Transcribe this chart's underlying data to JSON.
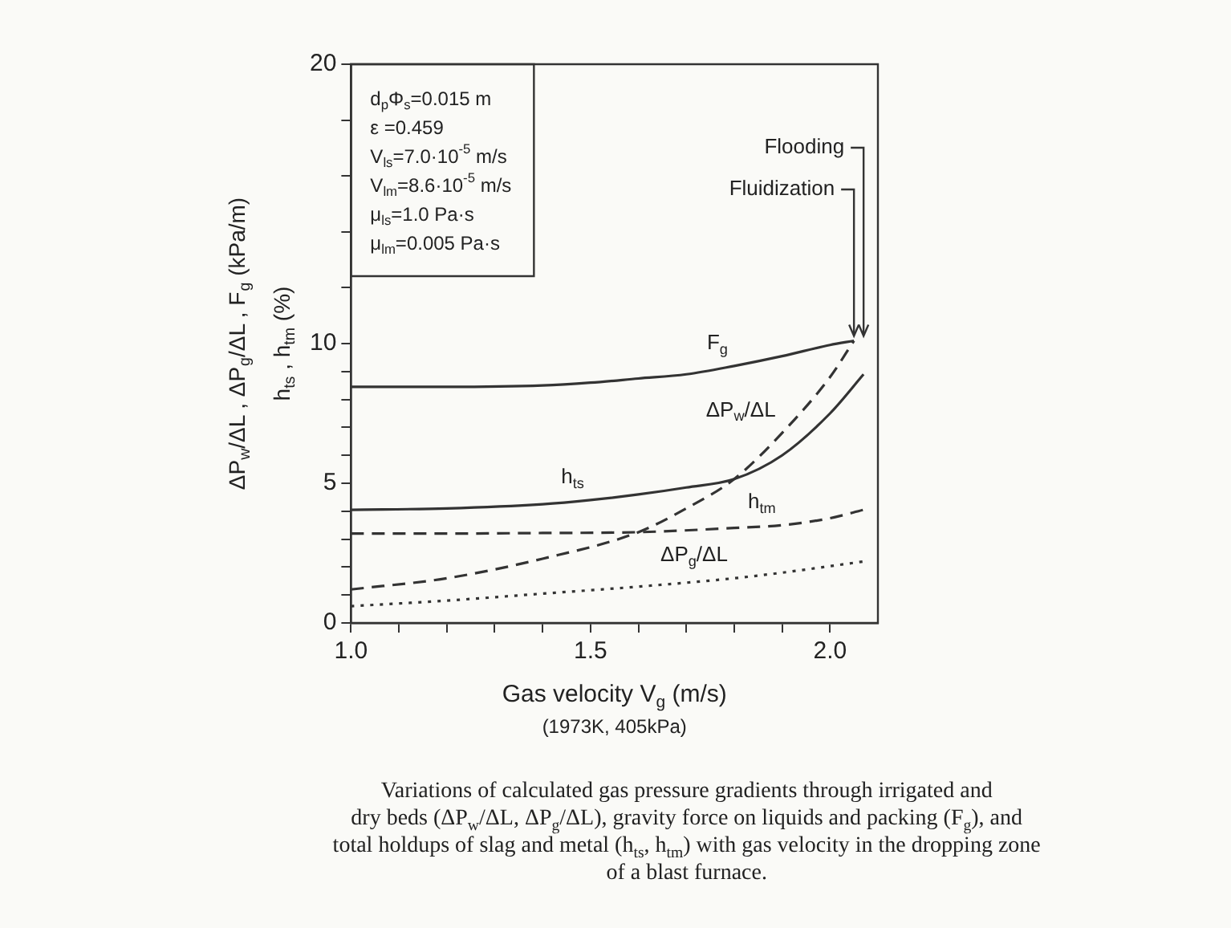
{
  "chart_data": {
    "type": "line",
    "xlabel": "Gas velocity V$_{g}$ (m/s)\n(1973K, 405kPa)",
    "ylabel": "ΔP$_{w}$/ΔL , ΔP$_{g}$/ΔL , F$_{g}$ (kPa/m)\nh$_{ts}$ , h$_{tm}$ (%)",
    "xlim": [
      1.0,
      2.1
    ],
    "xticks": [
      {
        "value": 1.0,
        "label": "1.0"
      },
      {
        "value": 1.1,
        "label": null
      },
      {
        "value": 1.2,
        "label": null
      },
      {
        "value": 1.3,
        "label": null
      },
      {
        "value": 1.4,
        "label": null
      },
      {
        "value": 1.5,
        "label": "1.5"
      },
      {
        "value": 1.6,
        "label": null
      },
      {
        "value": 1.7,
        "label": null
      },
      {
        "value": 1.8,
        "label": null
      },
      {
        "value": 1.9,
        "label": null
      },
      {
        "value": 2.0,
        "label": "2.0"
      }
    ],
    "ylim": [
      0,
      20
    ],
    "yticks": [
      0,
      {
        "value": 1,
        "label": null
      },
      {
        "value": 2,
        "label": null
      },
      {
        "value": 3,
        "label": null
      },
      {
        "value": 4,
        "label": null
      },
      5,
      {
        "value": 6,
        "label": null
      },
      {
        "value": 7,
        "label": null
      },
      {
        "value": 8,
        "label": null
      },
      {
        "value": 9,
        "label": null
      },
      10,
      {
        "value": 12,
        "label": null
      },
      {
        "value": 14,
        "label": null
      },
      {
        "value": 16,
        "label": null
      },
      {
        "value": 18,
        "label": null
      },
      20
    ],
    "grid": false,
    "legend": false,
    "marker": "none",
    "series": [
      {
        "color": "#333333",
        "line_style": "solid",
        "x": [
          1.0,
          1.2,
          1.4,
          1.5,
          1.6,
          1.7,
          1.8,
          1.9,
          2.0,
          2.05
        ],
        "values": [
          8.45,
          8.45,
          8.5,
          8.6,
          8.75,
          8.9,
          9.2,
          9.55,
          9.95,
          10.1
        ]
      },
      {
        "color": "#333333",
        "line_style": "solid",
        "x": [
          1.0,
          1.2,
          1.4,
          1.5,
          1.6,
          1.7,
          1.8,
          1.9,
          2.0,
          2.07
        ],
        "values": [
          4.05,
          4.1,
          4.25,
          4.4,
          4.6,
          4.85,
          5.15,
          6.0,
          7.5,
          8.9
        ]
      },
      {
        "color": "#333333",
        "line_style": "dashed",
        "x": [
          1.0,
          1.2,
          1.4,
          1.6,
          1.8,
          1.9,
          2.0,
          2.07
        ],
        "values": [
          3.2,
          3.2,
          3.22,
          3.25,
          3.4,
          3.5,
          3.75,
          4.05
        ]
      },
      {
        "color": "#333333",
        "line_style": "dashed",
        "x": [
          1.0,
          1.2,
          1.4,
          1.6,
          1.7,
          1.8,
          1.9,
          2.0,
          2.05
        ],
        "values": [
          1.2,
          1.6,
          2.3,
          3.25,
          4.1,
          5.15,
          6.8,
          8.8,
          10.1
        ]
      },
      {
        "color": "#333333",
        "line_style": "dotted",
        "x": [
          1.0,
          1.2,
          1.4,
          1.6,
          1.8,
          1.9,
          2.07
        ],
        "values": [
          0.6,
          0.8,
          1.05,
          1.3,
          1.6,
          1.8,
          2.2
        ]
      }
    ],
    "annotations": [
      "d$_{p}$Φ$_{s}$=0.015 m\nε =0.459\nV$_{ls}$=7.0·10$^{-5}$ m/s\nV$_{lm}$=8.6·10$^{-5}$ m/s\nμ$_{ls}$=1.0 Pa·s\nμ$_{lm}$=0.005 Pa·s",
      {
        "text": "F$_{g}$",
        "x": 1.8,
        "y": 9.2
      },
      {
        "text": "ΔP$_{w}$/ΔL",
        "x": 1.9,
        "y": 6.8
      },
      {
        "text": "h$_{ts}$",
        "x": 1.5,
        "y": 4.4
      },
      {
        "text": "h$_{tm}$",
        "x": 1.9,
        "y": 3.5
      },
      {
        "text": "ΔP$_{g}$/ΔL",
        "x": 1.8,
        "y": 1.6
      },
      {
        "text": "Flooding",
        "x": 2.05,
        "y": 10.1
      },
      {
        "text": "Fluidization",
        "x": 2.05,
        "y": 10.1
      },
      "Variations of calculated gas pressure gradients through irrigated and\ndry beds (ΔP$_{w}$/ΔL, ΔP$_{g}$/ΔL), gravity force on liquids and packing (F$_{g}$), and\ntotal holdups of slag and metal (h$_{ts}$, h$_{tm}$) with gas velocity in the dropping zone\nof a blast furnace."
    ]
  }
}
